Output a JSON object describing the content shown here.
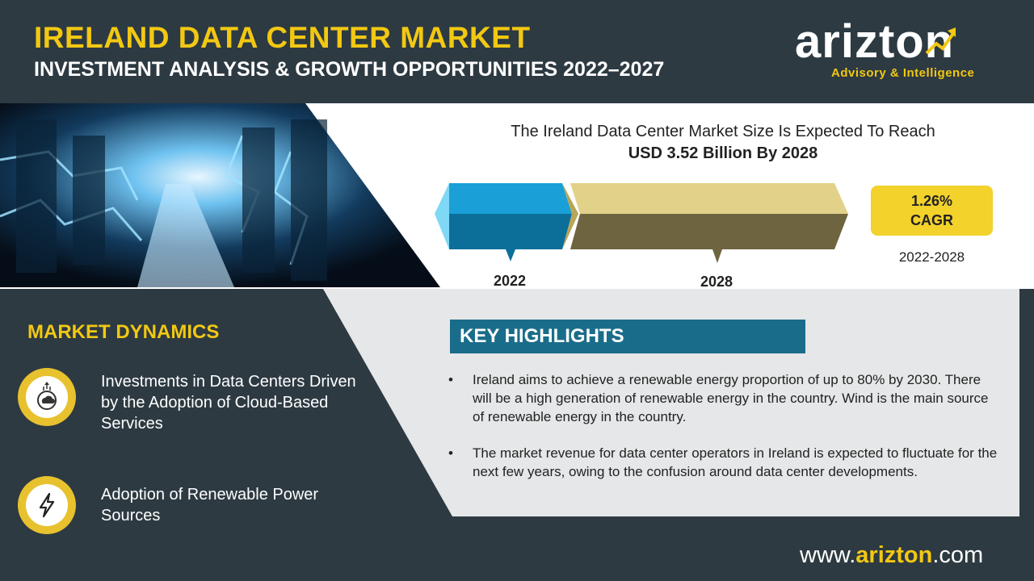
{
  "header": {
    "title": "IRELAND DATA CENTER MARKET",
    "subtitle": "INVESTMENT ANALYSIS & GROWTH OPPORTUNITIES 2022–2027"
  },
  "logo": {
    "wordmark": "arizton",
    "tagline": "Advisory & Intelligence"
  },
  "market_size": {
    "line1": "The Ireland Data Center Market Size Is Expected To Reach",
    "line2": "USD 3.52 Billion By 2028",
    "start_year": "2022",
    "end_year": "2028",
    "cagr_value": "1.26%",
    "cagr_label": "CAGR",
    "cagr_period": "2022-2028"
  },
  "market_dynamics": {
    "title": "MARKET DYNAMICS",
    "items": [
      {
        "text": "Investments in Data Centers Driven by the Adoption of Cloud-Based Services",
        "icon": "cloud-investment-icon"
      },
      {
        "text": "Adoption of Renewable Power Sources",
        "icon": "lightning-bolt-icon"
      }
    ]
  },
  "key_highlights": {
    "title": "KEY HIGHLIGHTS",
    "bullets": [
      "Ireland aims to achieve a renewable energy proportion of up to 80% by 2030. There will be a high generation of renewable energy in the country. Wind is the main source of renewable energy in the country.",
      "The market revenue for data center operators in Ireland is expected to fluctuate for the next few years, owing to the confusion around data center developments."
    ],
    "bullet_glyph": "•"
  },
  "footer": {
    "url_prefix": "www.",
    "url_brand": "arizton",
    "url_suffix": ".com"
  },
  "colors": {
    "navy": "#2d3a42",
    "yellow": "#f2c812",
    "teal": "#1a6d8a",
    "bar_blue": "#0e84b8",
    "bar_khaki": "#d9c77a"
  }
}
